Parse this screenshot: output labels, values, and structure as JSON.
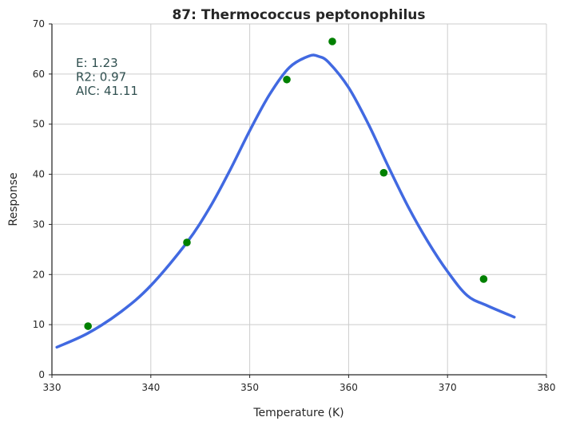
{
  "chart_data": {
    "type": "scatter",
    "title": "87: Thermococcus peptonophilus",
    "xlabel": "Temperature (K)",
    "ylabel": "Response",
    "xlim": [
      330,
      380
    ],
    "ylim": [
      0,
      70
    ],
    "xticks": [
      330,
      340,
      350,
      360,
      370,
      380
    ],
    "yticks": [
      0,
      10,
      20,
      30,
      40,
      50,
      60,
      70
    ],
    "grid": true,
    "points": {
      "color": "#008000",
      "x": [
        333.65,
        343.65,
        353.75,
        358.35,
        363.55,
        373.65
      ],
      "y": [
        9.7,
        26.4,
        58.9,
        66.5,
        40.3,
        19.1
      ]
    },
    "fit_curve": {
      "color": "#4169e1",
      "x": [
        330.5,
        333.65,
        337,
        340,
        343.65,
        346,
        348,
        350,
        352,
        354,
        356,
        357,
        358,
        360,
        362,
        364,
        366,
        368,
        370,
        372,
        374,
        376.75
      ],
      "y": [
        5.5,
        8.3,
        12.6,
        17.8,
        26.4,
        33.5,
        40.8,
        48.7,
        55.9,
        61.3,
        63.6,
        63.5,
        62.3,
        57.3,
        50.0,
        41.6,
        33.6,
        26.6,
        20.6,
        15.8,
        13.8,
        11.5
      ]
    },
    "annotations": [
      "E:  1.23",
      "R2:  0.97",
      "AIC: 41.11"
    ],
    "annotation_color": "#2f4f4f"
  }
}
